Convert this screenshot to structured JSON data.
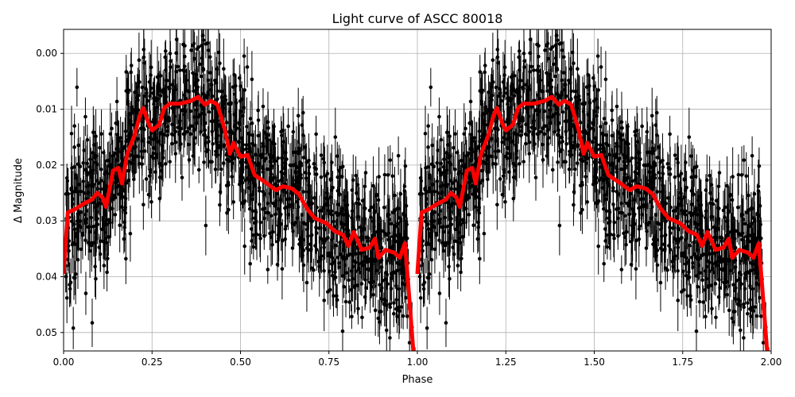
{
  "chart_data": {
    "type": "scatter",
    "title": "Light curve of ASCC 80018",
    "xlabel": "Phase",
    "ylabel": "Δ Magnitude",
    "xlim": [
      0,
      2
    ],
    "ylim": [
      0.0533,
      -0.0043
    ],
    "y_inverted": true,
    "grid": true,
    "x_ticks": [
      "0.00",
      "0.25",
      "0.50",
      "0.75",
      "1.00",
      "1.25",
      "1.50",
      "1.75",
      "2.00"
    ],
    "y_ticks": [
      "0.00",
      "0.01",
      "0.02",
      "0.03",
      "0.04",
      "0.05"
    ],
    "colors": {
      "points": "#000000",
      "binned_curve": "#ff0000",
      "grid": "#b0b0b0"
    },
    "binned_curve": {
      "phase": [
        0.0,
        0.012,
        0.03,
        0.06,
        0.08,
        0.095,
        0.11,
        0.12,
        0.14,
        0.155,
        0.165,
        0.18,
        0.2,
        0.215,
        0.225,
        0.24,
        0.25,
        0.27,
        0.285,
        0.3,
        0.33,
        0.36,
        0.38,
        0.4,
        0.416,
        0.435,
        0.455,
        0.47,
        0.48,
        0.5,
        0.52,
        0.54,
        0.575,
        0.6,
        0.62,
        0.645,
        0.665,
        0.69,
        0.71,
        0.745,
        0.765,
        0.79,
        0.805,
        0.82,
        0.843,
        0.865,
        0.88,
        0.89,
        0.91,
        0.935,
        0.95,
        0.965,
        0.978,
        0.988,
        0.995
      ],
      "magnitude": [
        0.0395,
        0.0285,
        0.028,
        0.0268,
        0.0262,
        0.025,
        0.0258,
        0.0275,
        0.021,
        0.0205,
        0.0233,
        0.018,
        0.0148,
        0.0112,
        0.0098,
        0.0125,
        0.0138,
        0.0128,
        0.0098,
        0.009,
        0.009,
        0.0085,
        0.0078,
        0.0092,
        0.0085,
        0.0092,
        0.0135,
        0.018,
        0.016,
        0.0185,
        0.0182,
        0.0218,
        0.0233,
        0.0245,
        0.0238,
        0.0242,
        0.0252,
        0.028,
        0.0295,
        0.0305,
        0.0318,
        0.0325,
        0.0345,
        0.032,
        0.0352,
        0.0348,
        0.0332,
        0.0366,
        0.0352,
        0.0357,
        0.0366,
        0.034,
        0.0445,
        0.053,
        0.053
      ]
    }
  }
}
